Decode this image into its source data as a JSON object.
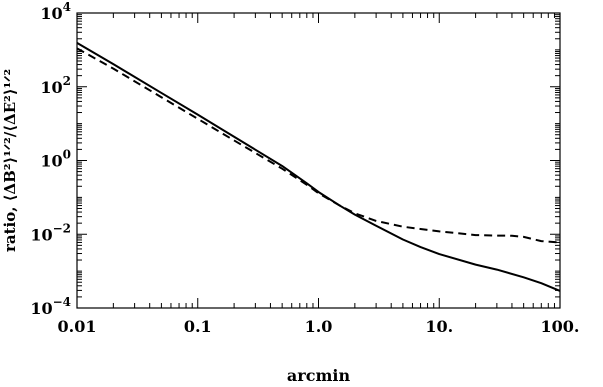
{
  "chart_data": {
    "type": "line",
    "title": "",
    "xlabel": "arcmin",
    "ylabel": "ratio, ⟨ΔB²⟩¹ᐟ²/⟨ΔE²⟩¹ᐟ²",
    "xscale": "log",
    "yscale": "log",
    "xlim": [
      0.01,
      100
    ],
    "ylim": [
      0.0001,
      10000
    ],
    "grid": false,
    "legend": "none",
    "x_ticks": [
      {
        "value": 0.01,
        "label": "0.01"
      },
      {
        "value": 0.1,
        "label": "0.1"
      },
      {
        "value": 1,
        "label": "1.0"
      },
      {
        "value": 10,
        "label": "10."
      },
      {
        "value": 100,
        "label": "100."
      }
    ],
    "y_ticks": [
      {
        "value": 0.0001,
        "base": "10",
        "exp": "−4"
      },
      {
        "value": 0.01,
        "base": "10",
        "exp": "−2"
      },
      {
        "value": 1,
        "base": "10",
        "exp": "0"
      },
      {
        "value": 100,
        "base": "10",
        "exp": "2"
      },
      {
        "value": 10000,
        "base": "10",
        "exp": "4"
      }
    ],
    "series": [
      {
        "style": "solid",
        "points": [
          [
            0.01,
            1550
          ],
          [
            0.02,
            410
          ],
          [
            0.05,
            68
          ],
          [
            0.1,
            17.5
          ],
          [
            0.2,
            4.4
          ],
          [
            0.5,
            0.71
          ],
          [
            0.8,
            0.24
          ],
          [
            1.0,
            0.14
          ],
          [
            1.5,
            0.06
          ],
          [
            2.0,
            0.034
          ],
          [
            3.0,
            0.017
          ],
          [
            5.0,
            0.0072
          ],
          [
            7.0,
            0.0045
          ],
          [
            10.0,
            0.0029
          ],
          [
            20.0,
            0.0015
          ],
          [
            30.0,
            0.0011
          ],
          [
            50.0,
            0.00068
          ],
          [
            70.0,
            0.00047
          ],
          [
            100.0,
            0.00029
          ]
        ]
      },
      {
        "style": "dashed",
        "points": [
          [
            0.01,
            1100
          ],
          [
            0.02,
            310
          ],
          [
            0.05,
            52
          ],
          [
            0.1,
            13.5
          ],
          [
            0.2,
            3.5
          ],
          [
            0.5,
            0.6
          ],
          [
            0.8,
            0.22
          ],
          [
            1.0,
            0.13
          ],
          [
            1.5,
            0.06
          ],
          [
            2.0,
            0.037
          ],
          [
            3.0,
            0.023
          ],
          [
            5.0,
            0.016
          ],
          [
            10.0,
            0.012
          ],
          [
            20.0,
            0.0095
          ],
          [
            30.0,
            0.0092
          ],
          [
            40.0,
            0.0091
          ],
          [
            50.0,
            0.0085
          ],
          [
            70.0,
            0.0065
          ],
          [
            100.0,
            0.006
          ]
        ]
      }
    ]
  }
}
